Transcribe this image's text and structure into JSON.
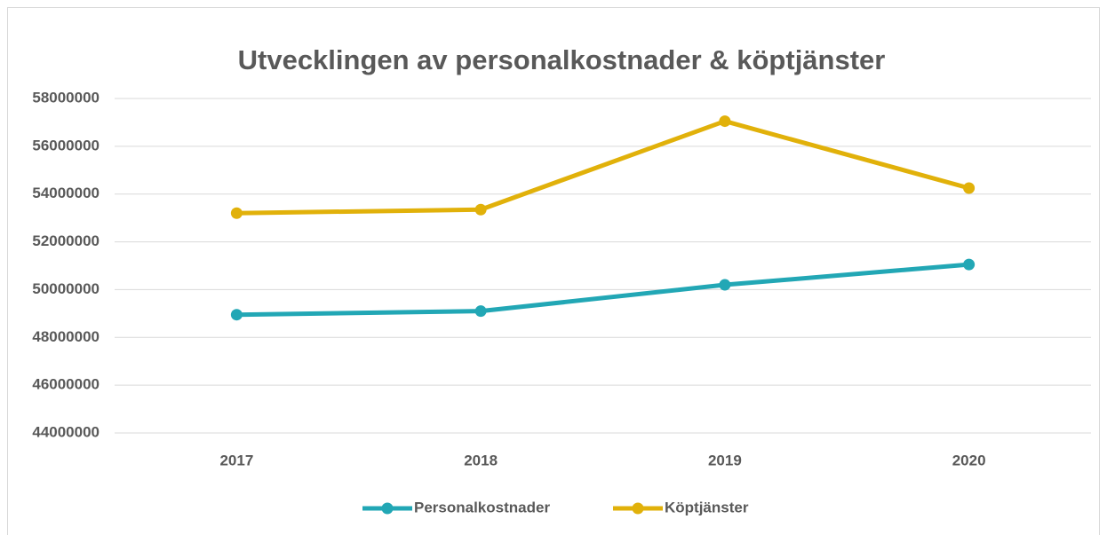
{
  "chart_data": {
    "type": "line",
    "title": "Utvecklingen av personalkostnader & köptjänster",
    "categories": [
      "2017",
      "2018",
      "2019",
      "2020"
    ],
    "series": [
      {
        "name": "Personalkostnader",
        "color": "#22a7b5",
        "values": [
          48950000,
          49100000,
          50200000,
          51050000
        ]
      },
      {
        "name": "Köptjänster",
        "color": "#e1b10a",
        "values": [
          53200000,
          53350000,
          57050000,
          54250000
        ]
      }
    ],
    "ylim": [
      44000000,
      58000000
    ],
    "yticks": [
      44000000,
      46000000,
      48000000,
      50000000,
      52000000,
      54000000,
      56000000,
      58000000
    ],
    "grid": true,
    "legend": "bottom"
  }
}
